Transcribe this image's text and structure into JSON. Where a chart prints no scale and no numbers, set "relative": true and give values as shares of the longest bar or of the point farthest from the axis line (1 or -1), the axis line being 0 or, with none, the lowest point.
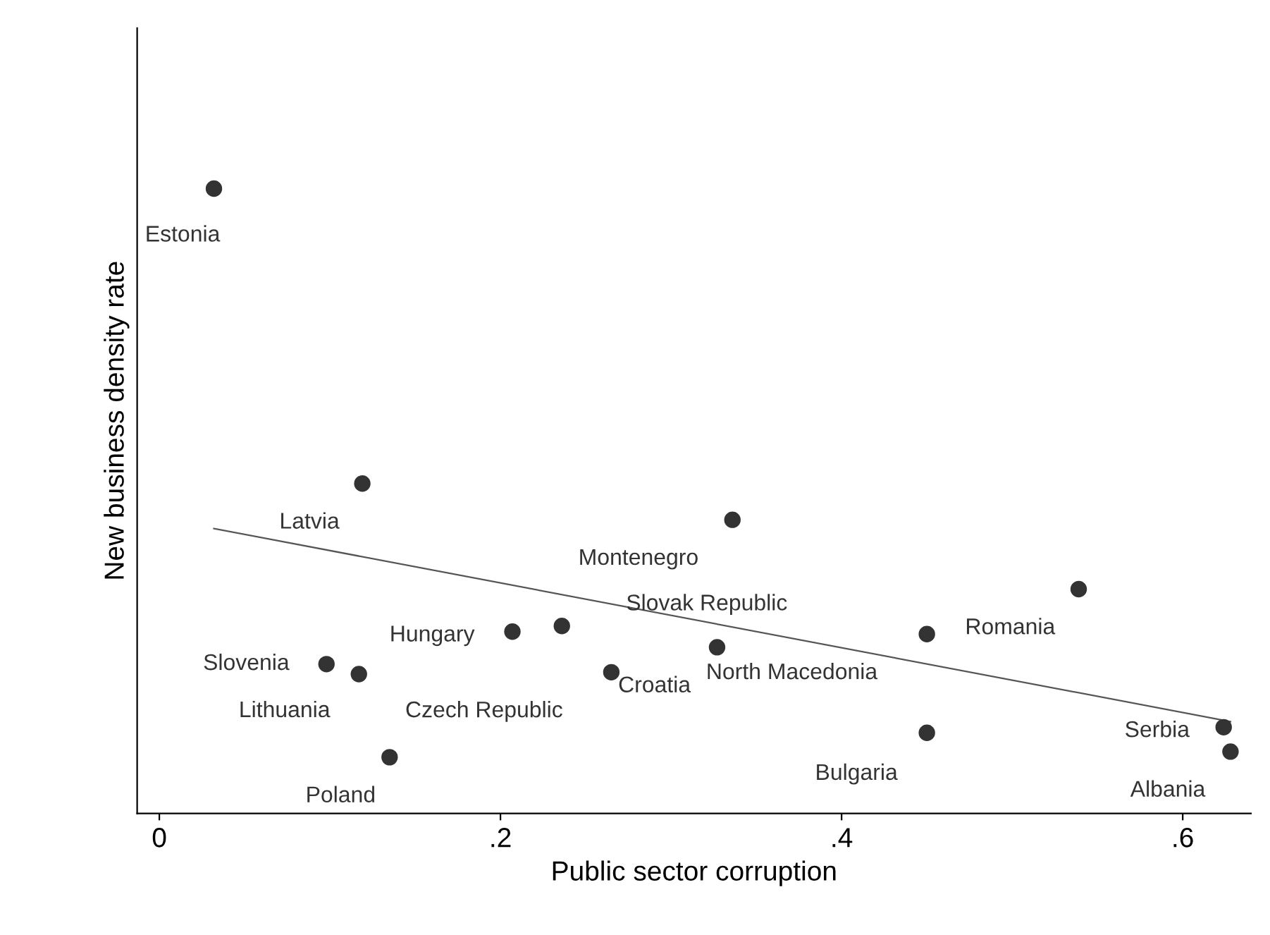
{
  "chart_data": {
    "type": "scatter",
    "relative": true,
    "xlabel": "Public sector corruption",
    "ylabel": "New business density rate",
    "xlim": [
      -0.013,
      0.64
    ],
    "xticks": [
      {
        "value": 0,
        "label": "0"
      },
      {
        "value": 0.2,
        "label": ".2"
      },
      {
        "value": 0.4,
        "label": ".4"
      },
      {
        "value": 0.6,
        "label": ".6"
      }
    ],
    "marker": "circle",
    "grid": false,
    "legend": false,
    "series": [
      {
        "color": "#333333",
        "x": [
          0.032,
          0.119,
          0.336,
          0.539,
          0.207,
          0.236,
          0.45,
          0.098,
          0.117,
          0.327,
          0.265,
          0.135,
          0.45,
          0.624,
          0.628
        ],
        "values": [
          1.0,
          0.528,
          0.47,
          0.359,
          0.291,
          0.3,
          0.287,
          0.239,
          0.223,
          0.266,
          0.226,
          0.09,
          0.129,
          0.138,
          0.099
        ]
      },
      {
        "type": "line",
        "marker": "none",
        "color": "#555555",
        "x": [
          0.032,
          0.628
        ],
        "values": [
          0.456,
          0.147
        ]
      }
    ],
    "annotations": [
      {
        "text": "Estonia",
        "x": 0.032,
        "y": 1.0
      },
      {
        "text": "Latvia",
        "x": 0.119,
        "y": 0.528
      },
      {
        "text": "Montenegro",
        "x": 0.336,
        "y": 0.47
      },
      {
        "text": "Romania",
        "x": 0.539,
        "y": 0.359
      },
      {
        "text": "Hungary",
        "x": 0.207,
        "y": 0.291
      },
      {
        "text": "Slovak Republic",
        "x": 0.236,
        "y": 0.3
      },
      {
        "text": "North Macedonia",
        "x": 0.45,
        "y": 0.287
      },
      {
        "text": "Slovenia",
        "x": 0.098,
        "y": 0.239
      },
      {
        "text": "Lithuania",
        "x": 0.117,
        "y": 0.223
      },
      {
        "text": "Croatia",
        "x": 0.327,
        "y": 0.266
      },
      {
        "text": "Czech Republic",
        "x": 0.265,
        "y": 0.226
      },
      {
        "text": "Poland",
        "x": 0.135,
        "y": 0.09
      },
      {
        "text": "Bulgaria",
        "x": 0.45,
        "y": 0.129
      },
      {
        "text": "Serbia",
        "x": 0.624,
        "y": 0.138
      },
      {
        "text": "Albania",
        "x": 0.628,
        "y": 0.099
      }
    ]
  }
}
